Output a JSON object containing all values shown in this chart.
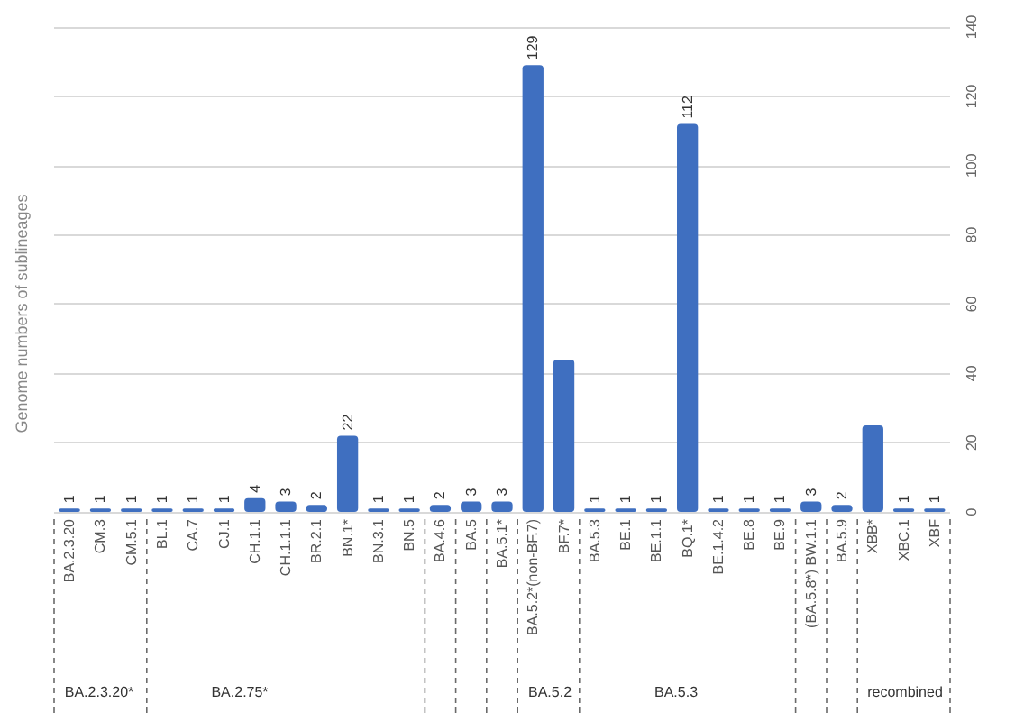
{
  "chart_data": {
    "type": "bar",
    "ylabel": "Genome numbers of sublineages",
    "categories": [
      "BA.2.3.20",
      "CM.3",
      "CM.5.1",
      "BL.1",
      "CA.7",
      "CJ.1",
      "CH.1.1",
      "CH.1.1.1",
      "BR.2.1",
      "BN.1*",
      "BN.3.1",
      "BN.5",
      "BA.4.6",
      "BA.5",
      "BA.5.1*",
      "BA.5.2*(non-BF.7)",
      "BF.7*",
      "BA.5.3",
      "BE.1",
      "BE.1.1",
      "BQ.1*",
      "BE.1.4.2",
      "BE.8",
      "BE.9",
      "(BA.5.8*) BW.1.1",
      "BA.5.9",
      "XBB*",
      "XBC.1",
      "XBF"
    ],
    "values": [
      1,
      1,
      1,
      1,
      1,
      1,
      4,
      3,
      2,
      22,
      1,
      1,
      2,
      3,
      3,
      129,
      44,
      1,
      1,
      1,
      112,
      1,
      1,
      1,
      3,
      2,
      25,
      1,
      1
    ],
    "value_labels": [
      "1",
      "1",
      "1",
      "1",
      "1",
      "1",
      "4",
      "3",
      "2",
      "22",
      "1",
      "1",
      "2",
      "3",
      "3",
      "129",
      null,
      "1",
      "1",
      "1",
      "112",
      "1",
      "1",
      "1",
      "3",
      "2",
      null,
      "1",
      "1"
    ],
    "color": "#3f6fc0",
    "ylim": [
      0,
      140
    ],
    "yticks": [
      0,
      20,
      40,
      60,
      80,
      100,
      120,
      140
    ],
    "grid": "y",
    "annotations": [
      "BA.2.3.20*",
      "BA.2.75*",
      "BA.5.2",
      "BA.5.3",
      "recombined"
    ]
  }
}
